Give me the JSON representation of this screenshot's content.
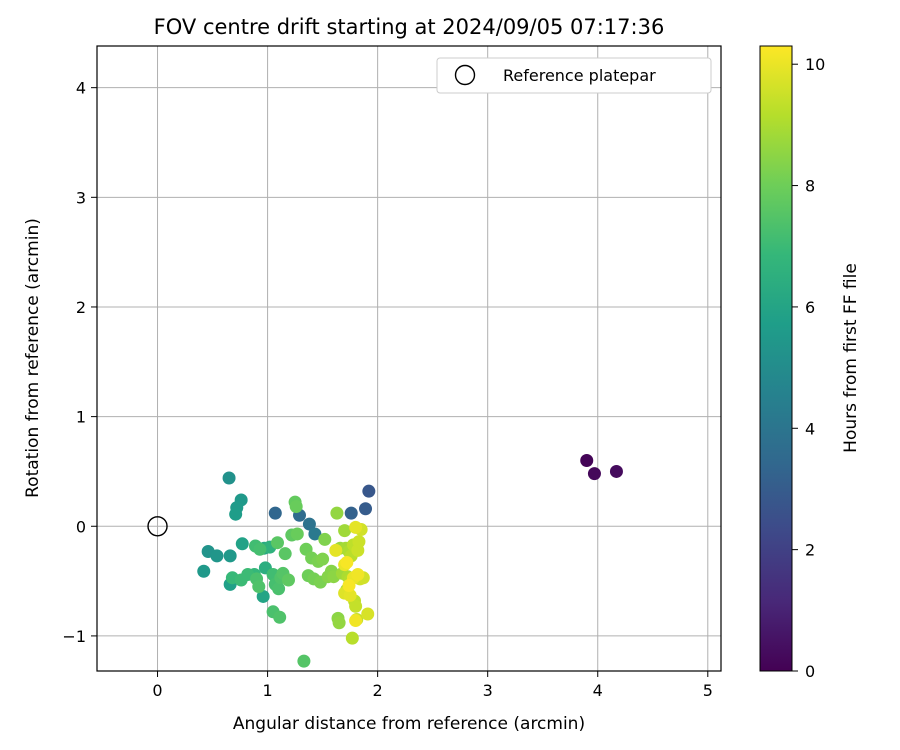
{
  "chart_data": {
    "type": "scatter",
    "title": "FOV centre drift starting at 2024/09/05 07:17:36",
    "xlabel": "Angular distance from reference (arcmin)",
    "ylabel": "Rotation from reference (arcmin)",
    "xlim": [
      -0.55,
      5.12
    ],
    "ylim": [
      -1.32,
      4.38
    ],
    "xticks": [
      0,
      1,
      2,
      3,
      4,
      5
    ],
    "xtick_labels": [
      "0",
      "1",
      "2",
      "3",
      "4",
      "5"
    ],
    "yticks": [
      -1,
      0,
      1,
      2,
      3,
      4
    ],
    "ytick_labels": [
      "−1",
      "0",
      "1",
      "2",
      "3",
      "4"
    ],
    "grid": true,
    "legend": {
      "position": "top-right",
      "entries": [
        "Reference platepar"
      ]
    },
    "reference_point": {
      "x": 0,
      "y": 0,
      "marker": "hollow-circle",
      "color": "#000000"
    },
    "colorbar": {
      "label": "Hours from first FF file",
      "range": [
        0,
        10.3
      ],
      "ticks": [
        0,
        2,
        4,
        6,
        8,
        10
      ],
      "tick_labels": [
        "0",
        "2",
        "4",
        "6",
        "8",
        "10"
      ],
      "colormap": "viridis",
      "stops": [
        "#440154",
        "#482878",
        "#3e4989",
        "#31688e",
        "#26828e",
        "#1f9e89",
        "#35b779",
        "#6ece58",
        "#b5de2b",
        "#fde725"
      ]
    },
    "points": [
      {
        "x": 3.9,
        "y": 0.6,
        "c": 0.1
      },
      {
        "x": 3.97,
        "y": 0.48,
        "c": 0.2
      },
      {
        "x": 4.17,
        "y": 0.5,
        "c": 0.3
      },
      {
        "x": 1.92,
        "y": 0.32,
        "c": 2.8
      },
      {
        "x": 1.89,
        "y": 0.16,
        "c": 3.0
      },
      {
        "x": 1.76,
        "y": 0.12,
        "c": 3.2
      },
      {
        "x": 1.07,
        "y": 0.12,
        "c": 3.4
      },
      {
        "x": 1.29,
        "y": 0.1,
        "c": 3.6
      },
      {
        "x": 1.38,
        "y": 0.02,
        "c": 3.9
      },
      {
        "x": 1.43,
        "y": -0.07,
        "c": 4.2
      },
      {
        "x": 0.65,
        "y": 0.44,
        "c": 5.2
      },
      {
        "x": 0.76,
        "y": 0.24,
        "c": 5.5
      },
      {
        "x": 0.72,
        "y": 0.17,
        "c": 5.6
      },
      {
        "x": 0.71,
        "y": 0.11,
        "c": 5.7
      },
      {
        "x": 0.46,
        "y": -0.23,
        "c": 5.3
      },
      {
        "x": 0.54,
        "y": -0.27,
        "c": 5.4
      },
      {
        "x": 0.42,
        "y": -0.41,
        "c": 5.5
      },
      {
        "x": 0.66,
        "y": -0.27,
        "c": 5.5
      },
      {
        "x": 0.66,
        "y": -0.53,
        "c": 5.8
      },
      {
        "x": 0.77,
        "y": -0.16,
        "c": 5.9
      },
      {
        "x": 0.96,
        "y": -0.64,
        "c": 6.0
      },
      {
        "x": 0.97,
        "y": -0.2,
        "c": 6.2
      },
      {
        "x": 0.98,
        "y": -0.38,
        "c": 6.4
      },
      {
        "x": 1.02,
        "y": -0.19,
        "c": 6.6
      },
      {
        "x": 0.88,
        "y": -0.44,
        "c": 6.8
      },
      {
        "x": 0.68,
        "y": -0.47,
        "c": 6.9
      },
      {
        "x": 0.76,
        "y": -0.49,
        "c": 7.0
      },
      {
        "x": 0.82,
        "y": -0.44,
        "c": 7.0
      },
      {
        "x": 0.89,
        "y": -0.18,
        "c": 7.1
      },
      {
        "x": 0.93,
        "y": -0.21,
        "c": 7.2
      },
      {
        "x": 0.9,
        "y": -0.48,
        "c": 7.3
      },
      {
        "x": 0.92,
        "y": -0.55,
        "c": 7.4
      },
      {
        "x": 1.05,
        "y": -0.44,
        "c": 7.1
      },
      {
        "x": 1.07,
        "y": -0.53,
        "c": 7.2
      },
      {
        "x": 1.1,
        "y": -0.57,
        "c": 7.3
      },
      {
        "x": 1.12,
        "y": -0.47,
        "c": 7.4
      },
      {
        "x": 1.14,
        "y": -0.43,
        "c": 7.5
      },
      {
        "x": 1.16,
        "y": -0.25,
        "c": 7.6
      },
      {
        "x": 1.09,
        "y": -0.15,
        "c": 7.6
      },
      {
        "x": 1.19,
        "y": -0.49,
        "c": 7.7
      },
      {
        "x": 1.05,
        "y": -0.78,
        "c": 7.3
      },
      {
        "x": 1.11,
        "y": -0.83,
        "c": 7.4
      },
      {
        "x": 1.22,
        "y": -0.08,
        "c": 7.7
      },
      {
        "x": 1.25,
        "y": 0.22,
        "c": 7.8
      },
      {
        "x": 1.26,
        "y": 0.18,
        "c": 7.9
      },
      {
        "x": 1.27,
        "y": -0.07,
        "c": 7.9
      },
      {
        "x": 1.35,
        "y": -0.21,
        "c": 8.0
      },
      {
        "x": 1.37,
        "y": -0.45,
        "c": 8.0
      },
      {
        "x": 1.4,
        "y": -0.29,
        "c": 8.1
      },
      {
        "x": 1.42,
        "y": -0.48,
        "c": 8.1
      },
      {
        "x": 1.46,
        "y": -0.32,
        "c": 8.2
      },
      {
        "x": 1.48,
        "y": -0.51,
        "c": 8.2
      },
      {
        "x": 1.5,
        "y": -0.3,
        "c": 8.3
      },
      {
        "x": 1.52,
        "y": -0.12,
        "c": 8.3
      },
      {
        "x": 1.55,
        "y": -0.46,
        "c": 8.4
      },
      {
        "x": 1.58,
        "y": -0.41,
        "c": 8.4
      },
      {
        "x": 1.6,
        "y": -0.46,
        "c": 8.5
      },
      {
        "x": 1.64,
        "y": -0.84,
        "c": 8.5
      },
      {
        "x": 1.65,
        "y": -0.88,
        "c": 8.6
      },
      {
        "x": 1.63,
        "y": 0.12,
        "c": 8.6
      },
      {
        "x": 1.33,
        "y": -1.23,
        "c": 7.5
      },
      {
        "x": 1.66,
        "y": -0.2,
        "c": 8.7
      },
      {
        "x": 1.68,
        "y": -0.43,
        "c": 8.8
      },
      {
        "x": 1.7,
        "y": -0.04,
        "c": 8.8
      },
      {
        "x": 1.71,
        "y": -0.2,
        "c": 8.9
      },
      {
        "x": 1.72,
        "y": -0.58,
        "c": 8.9
      },
      {
        "x": 1.73,
        "y": -0.46,
        "c": 9.0
      },
      {
        "x": 1.74,
        "y": -0.23,
        "c": 9.0
      },
      {
        "x": 1.75,
        "y": -0.49,
        "c": 9.1
      },
      {
        "x": 1.76,
        "y": -0.27,
        "c": 9.2
      },
      {
        "x": 1.77,
        "y": -1.02,
        "c": 9.2
      },
      {
        "x": 1.78,
        "y": -0.17,
        "c": 9.3
      },
      {
        "x": 1.79,
        "y": -0.68,
        "c": 9.3
      },
      {
        "x": 1.8,
        "y": -0.73,
        "c": 9.4
      },
      {
        "x": 1.81,
        "y": -0.85,
        "c": 9.4
      },
      {
        "x": 1.82,
        "y": -0.22,
        "c": 9.5
      },
      {
        "x": 1.83,
        "y": -0.14,
        "c": 9.5
      },
      {
        "x": 1.84,
        "y": -0.48,
        "c": 9.6
      },
      {
        "x": 1.85,
        "y": -0.03,
        "c": 9.6
      },
      {
        "x": 1.87,
        "y": -0.47,
        "c": 9.6
      },
      {
        "x": 1.91,
        "y": -0.8,
        "c": 9.7
      },
      {
        "x": 1.7,
        "y": -0.61,
        "c": 9.8
      },
      {
        "x": 1.75,
        "y": -0.63,
        "c": 9.9
      },
      {
        "x": 1.8,
        "y": -0.01,
        "c": 9.9
      },
      {
        "x": 1.62,
        "y": -0.22,
        "c": 9.9
      },
      {
        "x": 1.7,
        "y": -0.35,
        "c": 10.0
      },
      {
        "x": 1.78,
        "y": -0.47,
        "c": 10.0
      },
      {
        "x": 1.82,
        "y": -0.44,
        "c": 10.1
      },
      {
        "x": 1.8,
        "y": -0.86,
        "c": 10.1
      },
      {
        "x": 1.72,
        "y": -0.33,
        "c": 10.2
      },
      {
        "x": 1.74,
        "y": -0.54,
        "c": 10.2
      }
    ]
  }
}
